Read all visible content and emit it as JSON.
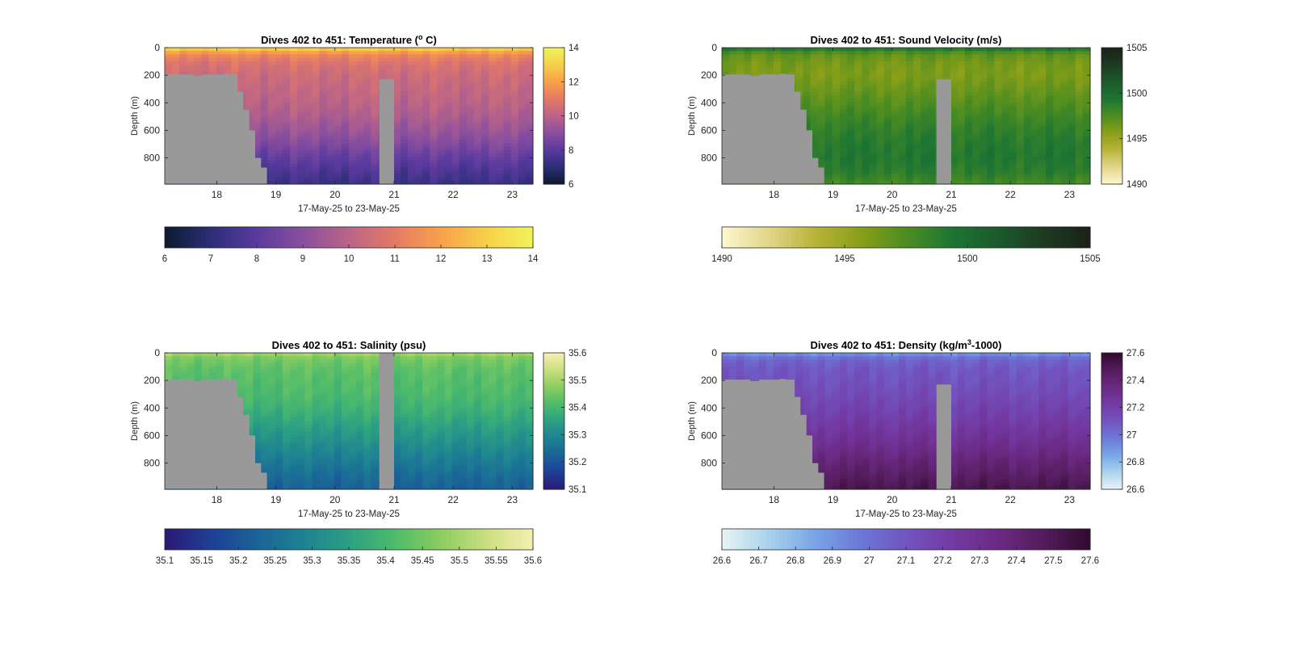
{
  "chart_data": [
    {
      "type": "heatmap",
      "title": "Dives 402 to 451: Temperature (",
      "title_sup": "o",
      "title_end": " C)",
      "xlabel": "17-May-25 to 23-May-25",
      "ylabel": "Depth (m)",
      "x_ticks": [
        "18",
        "19",
        "20",
        "21",
        "22",
        "23"
      ],
      "x_tick_values": [
        18,
        19,
        20,
        21,
        22,
        23
      ],
      "xlim": [
        17.12,
        23.35
      ],
      "y_ticks": [
        "0",
        "200",
        "400",
        "600",
        "800"
      ],
      "y_tick_values": [
        0,
        200,
        400,
        600,
        800
      ],
      "ylim": [
        0,
        990
      ],
      "colorbar": {
        "range": [
          6,
          14
        ],
        "ticks": [
          "6",
          "8",
          "10",
          "12",
          "14"
        ],
        "tick_values": [
          6,
          8,
          10,
          12,
          14
        ],
        "colors": [
          "#0d1a2e",
          "#2c2e78",
          "#5a3a9e",
          "#8a4f9e",
          "#bb6487",
          "#e47a66",
          "#f8a149",
          "#f7d04a",
          "#f1f35a"
        ]
      },
      "h_colorbar": {
        "ticks": [
          "6",
          "7",
          "8",
          "9",
          "10",
          "11",
          "12",
          "13",
          "14"
        ],
        "tick_values": [
          6,
          7,
          8,
          9,
          10,
          11,
          12,
          13,
          14
        ]
      },
      "profile": {
        "depths": [
          0,
          20,
          60,
          120,
          200,
          300,
          400,
          500,
          600,
          700,
          800,
          900,
          990
        ],
        "values": [
          13.6,
          12.3,
          11.3,
          10.7,
          10.4,
          10.2,
          10.0,
          9.7,
          9.3,
          8.8,
          8.2,
          7.7,
          7.3
        ]
      },
      "bottom_depth": {
        "x": [
          17.12,
          17.6,
          17.75,
          18.1,
          18.2,
          18.35,
          18.45,
          18.55,
          18.65,
          18.75,
          18.85,
          23.35
        ],
        "depth": [
          195,
          205,
          195,
          190,
          195,
          320,
          450,
          600,
          800,
          870,
          990,
          990
        ]
      },
      "gap": {
        "from": 20.75,
        "to": 21.0,
        "top_depth": 230
      }
    },
    {
      "type": "heatmap",
      "title": "Dives 402 to 451: Sound Velocity (m/s)",
      "xlabel": "17-May-25 to 23-May-25",
      "ylabel": "Depth (m)",
      "x_ticks": [
        "18",
        "19",
        "20",
        "21",
        "22",
        "23"
      ],
      "x_tick_values": [
        18,
        19,
        20,
        21,
        22,
        23
      ],
      "xlim": [
        17.12,
        23.35
      ],
      "y_ticks": [
        "0",
        "200",
        "400",
        "600",
        "800"
      ],
      "y_tick_values": [
        0,
        200,
        400,
        600,
        800
      ],
      "ylim": [
        0,
        990
      ],
      "colorbar": {
        "range": [
          1490,
          1505
        ],
        "ticks": [
          "1490",
          "1495",
          "1500",
          "1505"
        ],
        "tick_values": [
          1490,
          1495,
          1500,
          1505
        ],
        "colors": [
          "#fdf7d0",
          "#e2d68a",
          "#b9b43a",
          "#8a9f18",
          "#4c8d21",
          "#1d7533",
          "#1c5a2c",
          "#1e3a22",
          "#1a2218"
        ]
      },
      "h_colorbar": {
        "ticks": [
          "1490",
          "1495",
          "1500",
          "1505"
        ],
        "tick_values": [
          1490,
          1495,
          1500,
          1505
        ]
      },
      "profile": {
        "depths": [
          0,
          20,
          60,
          120,
          200,
          300,
          400,
          500,
          600,
          700,
          800,
          900,
          990
        ],
        "values": [
          1500.5,
          1498.0,
          1496.8,
          1496.2,
          1496.0,
          1496.6,
          1497.3,
          1498.0,
          1498.6,
          1499.0,
          1499.2,
          1498.8,
          1497.8
        ]
      },
      "bottom_depth": {
        "x": [
          17.12,
          17.6,
          17.75,
          18.1,
          18.2,
          18.35,
          18.45,
          18.55,
          18.65,
          18.75,
          18.85,
          23.35
        ],
        "depth": [
          195,
          205,
          195,
          190,
          195,
          320,
          450,
          600,
          800,
          870,
          990,
          990
        ]
      },
      "gap": {
        "from": 20.75,
        "to": 21.0,
        "top_depth": 230
      }
    },
    {
      "type": "heatmap",
      "title": "Dives 402 to 451: Salinity (psu)",
      "xlabel": "17-May-25 to 23-May-25",
      "ylabel": "Depth (m)",
      "x_ticks": [
        "18",
        "19",
        "20",
        "21",
        "22",
        "23"
      ],
      "x_tick_values": [
        18,
        19,
        20,
        21,
        22,
        23
      ],
      "xlim": [
        17.12,
        23.35
      ],
      "y_ticks": [
        "0",
        "200",
        "400",
        "600",
        "800"
      ],
      "y_tick_values": [
        0,
        200,
        400,
        600,
        800
      ],
      "ylim": [
        0,
        990
      ],
      "colorbar": {
        "range": [
          35.1,
          35.6
        ],
        "ticks": [
          "35.1",
          "35.2",
          "35.3",
          "35.4",
          "35.5",
          "35.6"
        ],
        "tick_values": [
          35.1,
          35.2,
          35.3,
          35.4,
          35.5,
          35.6
        ],
        "colors": [
          "#2a1a75",
          "#1f3f96",
          "#1a6398",
          "#1e8292",
          "#2ca083",
          "#4ebb6b",
          "#8ccd5f",
          "#cadf80",
          "#f6efb2"
        ]
      },
      "h_colorbar": {
        "ticks": [
          "35.1",
          "35.15",
          "35.2",
          "35.25",
          "35.3",
          "35.35",
          "35.4",
          "35.45",
          "35.5",
          "35.55",
          "35.6"
        ],
        "tick_values": [
          35.1,
          35.15,
          35.2,
          35.25,
          35.3,
          35.35,
          35.4,
          35.45,
          35.5,
          35.55,
          35.6
        ]
      },
      "profile": {
        "depths": [
          0,
          20,
          60,
          120,
          200,
          300,
          400,
          500,
          600,
          700,
          800,
          900,
          990
        ],
        "values": [
          35.52,
          35.47,
          35.45,
          35.43,
          35.42,
          35.41,
          35.39,
          35.36,
          35.33,
          35.3,
          35.27,
          35.24,
          35.22
        ]
      },
      "bottom_depth": {
        "x": [
          17.12,
          17.6,
          17.75,
          18.1,
          18.2,
          18.35,
          18.45,
          18.55,
          18.65,
          18.75,
          18.85,
          23.35
        ],
        "depth": [
          195,
          205,
          195,
          190,
          195,
          320,
          450,
          600,
          800,
          870,
          990,
          990
        ]
      },
      "gap": {
        "from": 20.75,
        "to": 21.0,
        "top_depth": 0
      }
    },
    {
      "type": "heatmap",
      "title": "Dives 402 to 451: Density (kg/m",
      "title_sup": "3",
      "title_end": "-1000)",
      "xlabel": "17-May-25 to 23-May-25",
      "ylabel": "Depth (m)",
      "x_ticks": [
        "18",
        "19",
        "20",
        "21",
        "22",
        "23"
      ],
      "x_tick_values": [
        18,
        19,
        20,
        21,
        22,
        23
      ],
      "xlim": [
        17.12,
        23.35
      ],
      "y_ticks": [
        "0",
        "200",
        "400",
        "600",
        "800"
      ],
      "y_tick_values": [
        0,
        200,
        400,
        600,
        800
      ],
      "ylim": [
        0,
        990
      ],
      "colorbar": {
        "range": [
          26.6,
          27.6
        ],
        "ticks": [
          "26.6",
          "26.8",
          "27",
          "27.2",
          "27.4",
          "27.6"
        ],
        "tick_values": [
          26.6,
          26.8,
          27.0,
          27.2,
          27.4,
          27.6
        ],
        "colors": [
          "#e8f4f6",
          "#a9d3ec",
          "#79a6e6",
          "#6c78d8",
          "#7254c0",
          "#733aa3",
          "#6a2a83",
          "#541c5c",
          "#300b2e"
        ]
      },
      "h_colorbar": {
        "ticks": [
          "26.6",
          "26.7",
          "26.8",
          "26.9",
          "27",
          "27.1",
          "27.2",
          "27.3",
          "27.4",
          "27.5",
          "27.6"
        ],
        "tick_values": [
          26.6,
          26.7,
          26.8,
          26.9,
          27.0,
          27.1,
          27.2,
          27.3,
          27.4,
          27.5,
          27.6
        ]
      },
      "profile": {
        "depths": [
          0,
          20,
          60,
          120,
          200,
          300,
          400,
          500,
          600,
          700,
          800,
          900,
          990
        ],
        "values": [
          26.85,
          26.97,
          27.05,
          27.09,
          27.11,
          27.14,
          27.18,
          27.22,
          27.27,
          27.33,
          27.4,
          27.46,
          27.52
        ]
      },
      "bottom_depth": {
        "x": [
          17.12,
          17.6,
          17.75,
          18.1,
          18.2,
          18.35,
          18.45,
          18.55,
          18.65,
          18.75,
          18.85,
          23.35
        ],
        "depth": [
          195,
          205,
          195,
          190,
          195,
          320,
          450,
          600,
          800,
          870,
          990,
          990
        ]
      },
      "gap": {
        "from": 20.75,
        "to": 21.0,
        "top_depth": 230
      }
    }
  ]
}
